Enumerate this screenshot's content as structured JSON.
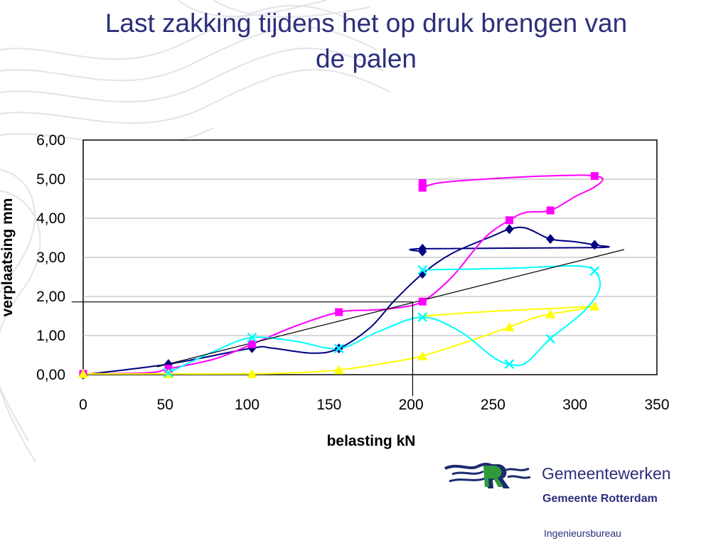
{
  "slide": {
    "title_line1": "Last zakking tijdens het op druk brengen van",
    "title_line2": "de palen"
  },
  "chart_data": {
    "type": "scatter",
    "xlabel": "belasting kN",
    "ylabel": "verplaatsing mm",
    "xlim": [
      0,
      350
    ],
    "ylim": [
      0,
      6
    ],
    "xticks": [
      "0",
      "50",
      "100",
      "150",
      "200",
      "250",
      "300",
      "350"
    ],
    "yticks": [
      "0,00",
      "1,00",
      "2,00",
      "3,00",
      "4,00",
      "5,00",
      "6,00"
    ],
    "grid": "horizontal",
    "series": [
      {
        "color": "#000080",
        "marker": "diamond",
        "points": [
          [
            0,
            0
          ],
          [
            52,
            0.27
          ],
          [
            103,
            0.68
          ],
          [
            156,
            0.67
          ],
          [
            207,
            2.58
          ],
          [
            207,
            3.15
          ],
          [
            207,
            3.22
          ],
          [
            260,
            3.72
          ],
          [
            285,
            3.47
          ],
          [
            312,
            3.32
          ]
        ],
        "curve": [
          [
            0,
            0
          ],
          [
            52,
            0.27
          ],
          [
            103,
            0.68
          ],
          [
            115,
            0.68
          ],
          [
            140,
            0.55
          ],
          [
            156,
            0.67
          ],
          [
            175,
            1.2
          ],
          [
            190,
            1.9
          ],
          [
            207,
            2.58
          ],
          [
            225,
            3.1
          ],
          [
            250,
            3.55
          ],
          [
            260,
            3.72
          ],
          [
            270,
            3.75
          ],
          [
            285,
            3.47
          ],
          [
            300,
            3.4
          ],
          [
            312,
            3.32
          ],
          [
            315,
            3.3
          ],
          [
            312,
            3.25
          ],
          [
            207,
            3.22
          ],
          [
            207,
            3.15
          ]
        ]
      },
      {
        "color": "#ff00ff",
        "marker": "square",
        "points": [
          [
            0,
            0.02
          ],
          [
            52,
            0.15
          ],
          [
            103,
            0.78
          ],
          [
            156,
            1.6
          ],
          [
            207,
            1.87
          ],
          [
            207,
            4.78
          ],
          [
            207,
            4.9
          ],
          [
            260,
            3.95
          ],
          [
            285,
            4.2
          ],
          [
            312,
            5.08
          ]
        ],
        "curve": [
          [
            0,
            0.02
          ],
          [
            40,
            0.05
          ],
          [
            52,
            0.15
          ],
          [
            80,
            0.4
          ],
          [
            103,
            0.78
          ],
          [
            130,
            1.25
          ],
          [
            156,
            1.6
          ],
          [
            175,
            1.65
          ],
          [
            190,
            1.7
          ],
          [
            207,
            1.87
          ],
          [
            225,
            2.5
          ],
          [
            245,
            3.5
          ],
          [
            260,
            3.95
          ],
          [
            270,
            4.15
          ],
          [
            285,
            4.2
          ],
          [
            300,
            4.55
          ],
          [
            312,
            4.8
          ],
          [
            317,
            5.0
          ],
          [
            312,
            5.08
          ],
          [
            300,
            5.1
          ],
          [
            265,
            5.05
          ],
          [
            220,
            4.92
          ],
          [
            207,
            4.78
          ]
        ]
      },
      {
        "color": "#ffff00",
        "marker": "triangle",
        "points": [
          [
            0,
            0.02
          ],
          [
            52,
            0.02
          ],
          [
            103,
            0.02
          ],
          [
            156,
            0.12
          ],
          [
            207,
            0.48
          ],
          [
            260,
            1.22
          ],
          [
            285,
            1.55
          ],
          [
            312,
            1.75
          ]
        ],
        "curve": [
          [
            0,
            0.02
          ],
          [
            52,
            0.02
          ],
          [
            103,
            0.02
          ],
          [
            130,
            0.05
          ],
          [
            156,
            0.12
          ],
          [
            185,
            0.3
          ],
          [
            207,
            0.48
          ],
          [
            235,
            0.85
          ],
          [
            260,
            1.22
          ],
          [
            275,
            1.45
          ],
          [
            285,
            1.55
          ],
          [
            300,
            1.65
          ],
          [
            312,
            1.75
          ],
          [
            300,
            1.72
          ],
          [
            250,
            1.62
          ],
          [
            207,
            1.5
          ]
        ]
      },
      {
        "color": "#00ffff",
        "marker": "x",
        "points": [
          [
            52,
            0.05
          ],
          [
            103,
            0.95
          ],
          [
            156,
            0.67
          ],
          [
            207,
            1.47
          ],
          [
            207,
            2.68
          ],
          [
            260,
            0.27
          ],
          [
            285,
            0.92
          ],
          [
            312,
            2.65
          ]
        ],
        "curve": [
          [
            52,
            0.05
          ],
          [
            80,
            0.6
          ],
          [
            103,
            0.95
          ],
          [
            130,
            0.85
          ],
          [
            156,
            0.67
          ],
          [
            180,
            1.1
          ],
          [
            207,
            1.47
          ],
          [
            230,
            1.1
          ],
          [
            250,
            0.45
          ],
          [
            260,
            0.27
          ],
          [
            270,
            0.3
          ],
          [
            285,
            0.92
          ],
          [
            305,
            1.6
          ],
          [
            315,
            2.2
          ],
          [
            312,
            2.65
          ],
          [
            300,
            2.78
          ],
          [
            260,
            2.72
          ],
          [
            207,
            2.68
          ]
        ]
      }
    ],
    "reference_lines": [
      {
        "from": [
          45,
          0.2
        ],
        "to": [
          330,
          3.2
        ]
      },
      {
        "from": [
          -7,
          1.86
        ],
        "to": [
          201,
          1.86
        ]
      },
      {
        "from": [
          201,
          1.86
        ],
        "to": [
          201,
          -0.55
        ]
      }
    ]
  },
  "logo": {
    "name": "Gemeentewerken",
    "subtitle": "Gemeente Rotterdam",
    "department": "Ingenieursbureau"
  }
}
